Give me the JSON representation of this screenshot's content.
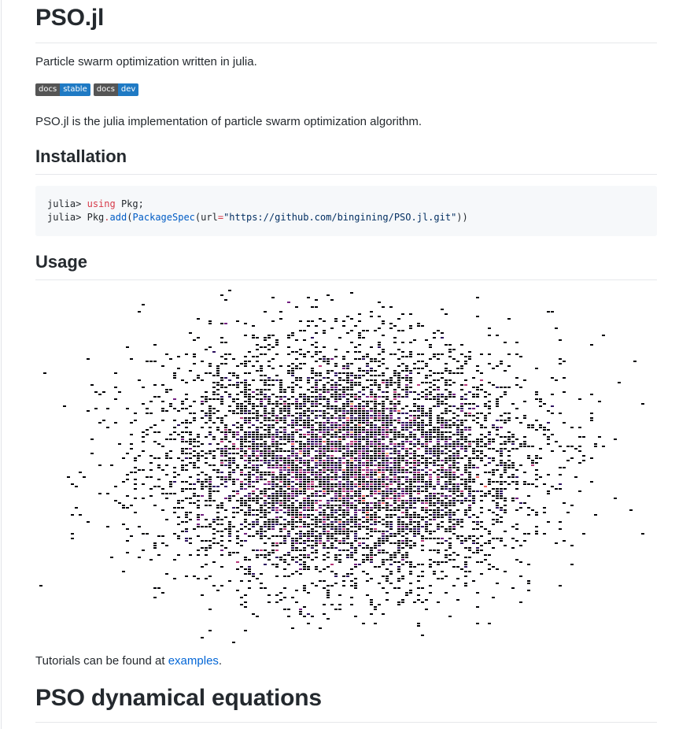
{
  "title": "PSO.jl",
  "tagline": "Particle swarm optimization written in julia.",
  "badges": [
    {
      "left": "docs",
      "right": "stable",
      "right_color": "#1f7ac4"
    },
    {
      "left": "docs",
      "right": "dev",
      "right_color": "#1f7ac4"
    }
  ],
  "intro": "PSO.jl is the julia implementation of particle swarm optimization algorithm.",
  "installation": {
    "heading": "Installation",
    "line1": {
      "prompt": "julia>",
      "keyword": "using",
      "rest": "Pkg;"
    },
    "line2": {
      "prompt": "julia>",
      "obj": "Pkg",
      "dot": ".",
      "fn": "add",
      "open": "(",
      "type": "PackageSpec",
      "open2": "(",
      "arg": "url",
      "eq": "=",
      "str": "\"https://github.com/bingining/PSO.jl.git\"",
      "close": "))"
    }
  },
  "usage": {
    "heading": "Usage",
    "image_label": "particle swarm density plot",
    "colors": [
      "#000004",
      "#2c115f",
      "#721f81",
      "#b73779",
      "#f1605d",
      "#feb078"
    ]
  },
  "tutorial": {
    "prefix": "Tutorials can be found at ",
    "link": "examples",
    "suffix": "."
  },
  "equations_heading": "PSO dynamical equations"
}
